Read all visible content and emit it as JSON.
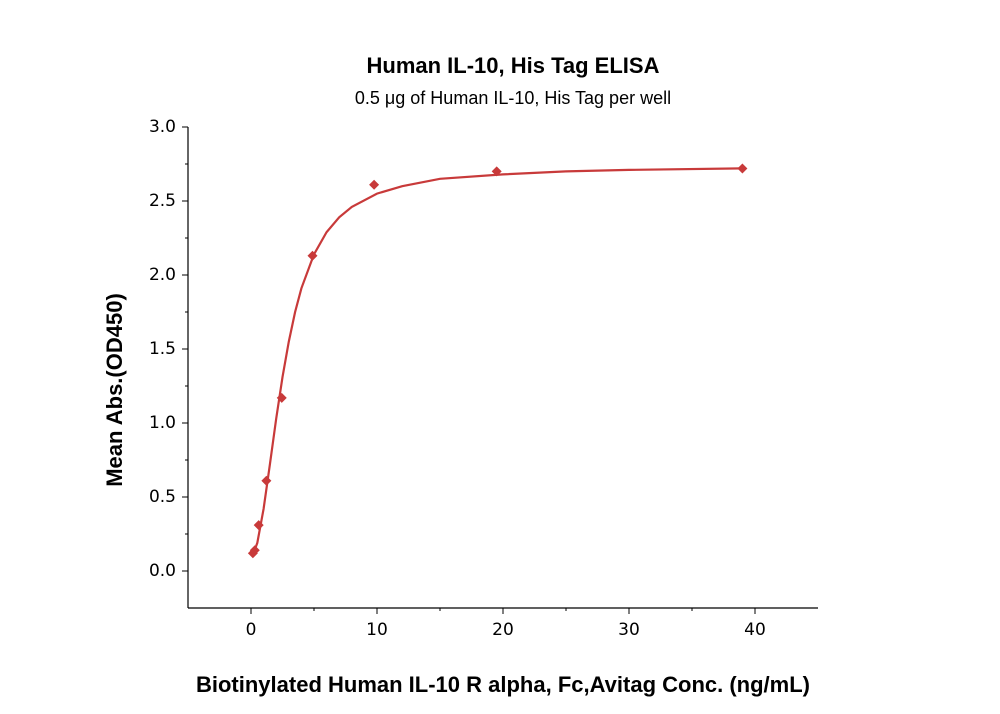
{
  "chart_data": {
    "type": "scatter",
    "title": "Human IL-10, His Tag ELISA",
    "subtitle": "0.5 μg of Human IL-10, His Tag per well",
    "x_label": "Biotinylated Human IL-10 R alpha, Fc,Avitag Conc. (ng/mL)",
    "y_label": "Mean Abs.(OD450)",
    "xlim": [
      -5,
      45
    ],
    "xticks": [
      0,
      10,
      20,
      30,
      40
    ],
    "ylim": [
      -0.25,
      3.0
    ],
    "yticks": [
      {
        "value": 0,
        "label": "0.0"
      },
      {
        "value": 0.5,
        "label": "0.5"
      },
      {
        "value": 1,
        "label": "1.0"
      },
      {
        "value": 1.5,
        "label": "1.5"
      },
      {
        "value": 2,
        "label": "2.0"
      },
      {
        "value": 2.5,
        "label": "2.5"
      },
      {
        "value": 3,
        "label": "3.0"
      }
    ],
    "series": [
      {
        "type": "scatter",
        "color": "#c83a3a",
        "x": [
          0.15,
          0.3,
          0.61,
          1.22,
          2.44,
          4.88,
          9.77,
          19.5,
          39
        ],
        "values": [
          0.12,
          0.14,
          0.31,
          0.61,
          1.17,
          2.13,
          2.61,
          2.7,
          2.72
        ]
      },
      {
        "type": "line",
        "color": "#c83a3a",
        "x": [
          0.15,
          0.5,
          1,
          1.5,
          2,
          2.5,
          3,
          3.5,
          4,
          5,
          6,
          7,
          8,
          10,
          12,
          15,
          20,
          25,
          30,
          39
        ],
        "values": [
          0.11,
          0.19,
          0.42,
          0.72,
          1.03,
          1.31,
          1.55,
          1.75,
          1.91,
          2.14,
          2.29,
          2.39,
          2.46,
          2.55,
          2.6,
          2.65,
          2.68,
          2.7,
          2.71,
          2.72
        ]
      }
    ]
  }
}
